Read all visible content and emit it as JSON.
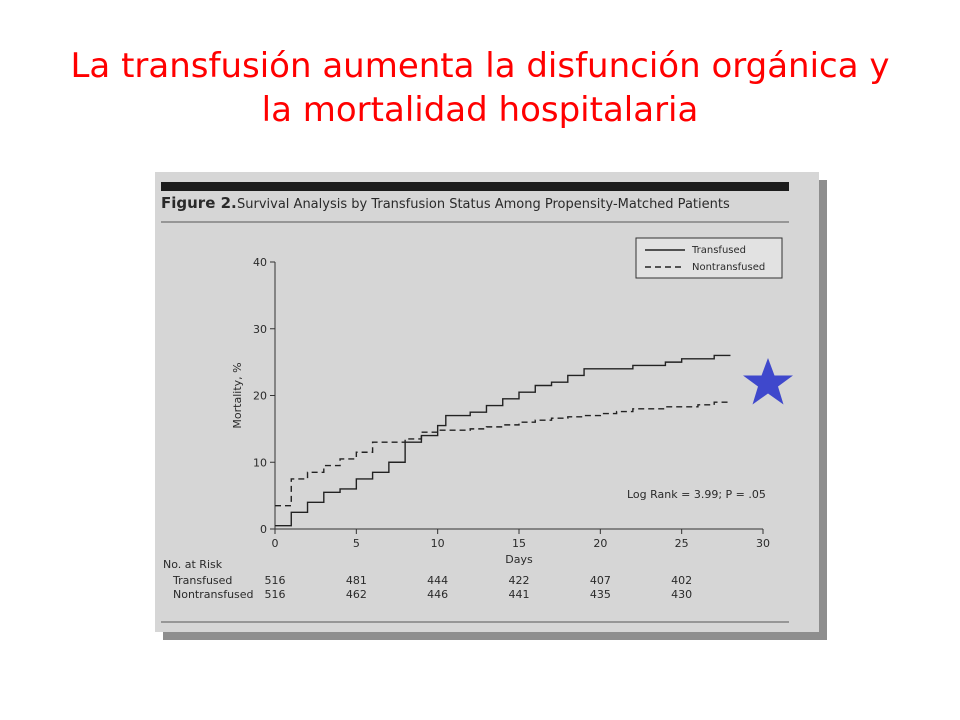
{
  "slide": {
    "title_line1": "La transfusión aumenta la disfunción orgánica y",
    "title_line2": "la mortalidad hospitalaria"
  },
  "colors": {
    "title": "#ff0000",
    "figure_bg": "#d6d6d6",
    "ink": "#2a2a2a",
    "star": "#3f48cc"
  },
  "decor": {
    "star_icon": "star-icon"
  },
  "chart_data": {
    "type": "line",
    "caption_label": "Figure 2.",
    "caption_text": "Survival Analysis by Transfusion Status Among Propensity-Matched Patients",
    "xlabel": "Days",
    "ylabel": "Mortality, %",
    "xlim": [
      0,
      30
    ],
    "ylim": [
      0,
      40
    ],
    "xticks": [
      0,
      5,
      10,
      15,
      20,
      25,
      30
    ],
    "yticks": [
      0,
      10,
      20,
      30,
      40
    ],
    "legend_position": "top-right",
    "annotation": "Log Rank = 3.99; P = .05",
    "series": [
      {
        "name": "Transfused",
        "style": "solid",
        "steps": [
          [
            0,
            0.5
          ],
          [
            1,
            2.5
          ],
          [
            2,
            4
          ],
          [
            3,
            5.5
          ],
          [
            4,
            6
          ],
          [
            5,
            7.5
          ],
          [
            6,
            8.5
          ],
          [
            7,
            10
          ],
          [
            8,
            13
          ],
          [
            9,
            14
          ],
          [
            10,
            15.5
          ],
          [
            10.5,
            17
          ],
          [
            12,
            17.5
          ],
          [
            13,
            18.5
          ],
          [
            14,
            19.5
          ],
          [
            15,
            20.5
          ],
          [
            16,
            21.5
          ],
          [
            17,
            22
          ],
          [
            18,
            23
          ],
          [
            19,
            24
          ],
          [
            22,
            24.5
          ],
          [
            24,
            25
          ],
          [
            25,
            25.5
          ],
          [
            26,
            25.5
          ],
          [
            27,
            26
          ],
          [
            28,
            26
          ]
        ]
      },
      {
        "name": "Nontransfused",
        "style": "dashed",
        "steps": [
          [
            0,
            3.5
          ],
          [
            1,
            7.5
          ],
          [
            2,
            8.5
          ],
          [
            3,
            9.5
          ],
          [
            4,
            10.5
          ],
          [
            5,
            11.5
          ],
          [
            6,
            13
          ],
          [
            8,
            13.5
          ],
          [
            9,
            14.5
          ],
          [
            10,
            14.8
          ],
          [
            12,
            15
          ],
          [
            13,
            15.3
          ],
          [
            14,
            15.6
          ],
          [
            15,
            16
          ],
          [
            16,
            16.3
          ],
          [
            17,
            16.6
          ],
          [
            18,
            16.8
          ],
          [
            19,
            17
          ],
          [
            20,
            17.3
          ],
          [
            21,
            17.6
          ],
          [
            22,
            18
          ],
          [
            24,
            18.3
          ],
          [
            26,
            18.6
          ],
          [
            27,
            19
          ],
          [
            28,
            19
          ]
        ]
      }
    ],
    "risk_table": {
      "header": "No. at Risk",
      "rows": [
        {
          "label": "Transfused",
          "values": [
            "516",
            "481",
            "444",
            "422",
            "407",
            "402"
          ]
        },
        {
          "label": "Nontransfused",
          "values": [
            "516",
            "462",
            "446",
            "441",
            "435",
            "430"
          ]
        }
      ],
      "days": [
        0,
        5,
        10,
        15,
        20,
        25
      ]
    }
  }
}
